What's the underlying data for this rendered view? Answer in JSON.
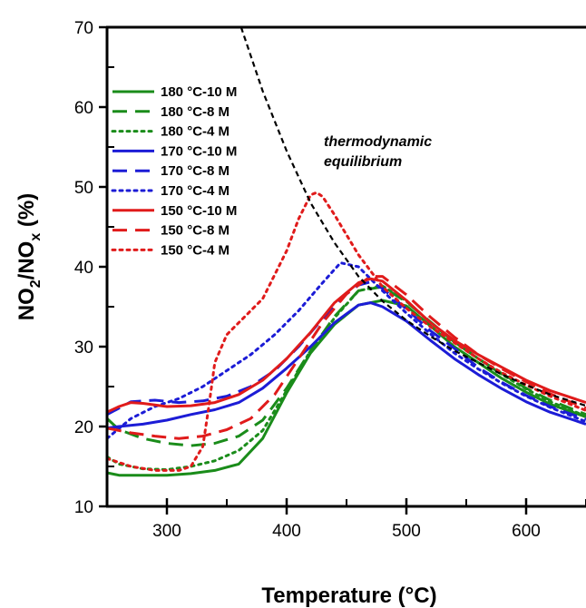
{
  "chart_data": {
    "type": "line",
    "xlabel": "Temperature (°C)",
    "ylabel": "NO2/NOx (%)",
    "xlim": [
      250,
      650
    ],
    "ylim": [
      10,
      70
    ],
    "xticks": [
      300,
      400,
      500,
      600
    ],
    "yticks": [
      10,
      20,
      30,
      40,
      50,
      60,
      70
    ],
    "grid": false,
    "legend_position": "top-left",
    "annotation": [
      "thermodynamic",
      "equilibrium"
    ],
    "colors": {
      "green": "#1a8c1a",
      "blue": "#1c1cd6",
      "red": "#e01b1b",
      "black": "#000000"
    },
    "series": [
      {
        "name": "180 °C-10 M",
        "color": "green",
        "dash": "solid",
        "x": [
          250,
          260,
          280,
          300,
          320,
          340,
          360,
          380,
          400,
          420,
          440,
          460,
          480,
          500,
          520,
          540,
          560,
          580,
          600,
          620,
          650
        ],
        "y": [
          14.2,
          13.9,
          13.9,
          13.9,
          14.1,
          14.5,
          15.3,
          18.5,
          24.2,
          29.2,
          32.8,
          35.2,
          35.8,
          35.1,
          32.6,
          30.0,
          28.0,
          26.0,
          24.3,
          22.8,
          21.2
        ]
      },
      {
        "name": "180 °C-8 M",
        "color": "green",
        "dash": "dash",
        "x": [
          250,
          260,
          280,
          300,
          320,
          340,
          360,
          380,
          400,
          420,
          440,
          460,
          480,
          500,
          520,
          540,
          560,
          580,
          600,
          620,
          650
        ],
        "y": [
          21.0,
          19.6,
          18.5,
          17.9,
          17.6,
          17.9,
          18.8,
          20.8,
          24.8,
          29.5,
          33.8,
          37.0,
          37.5,
          35.6,
          33.1,
          30.6,
          28.5,
          26.6,
          24.8,
          23.3,
          21.5
        ]
      },
      {
        "name": "180 °C-4 M",
        "color": "green",
        "dash": "dot",
        "x": [
          250,
          260,
          280,
          300,
          320,
          340,
          360,
          380,
          400,
          420,
          440,
          460,
          480,
          500,
          520,
          540,
          560,
          580,
          600,
          620,
          650
        ],
        "y": [
          16.2,
          15.3,
          14.7,
          14.6,
          15.0,
          15.7,
          17.0,
          19.5,
          24.5,
          29.5,
          33.6,
          37.0,
          37.6,
          35.7,
          33.0,
          30.6,
          28.5,
          26.5,
          24.7,
          23.1,
          21.3
        ]
      },
      {
        "name": "170 °C-10 M",
        "color": "blue",
        "dash": "solid",
        "x": [
          250,
          260,
          280,
          300,
          320,
          340,
          360,
          380,
          400,
          420,
          440,
          460,
          470,
          480,
          500,
          520,
          540,
          560,
          580,
          600,
          620,
          650
        ],
        "y": [
          19.8,
          20.0,
          20.3,
          20.8,
          21.5,
          22.1,
          23.0,
          24.8,
          27.3,
          30.0,
          33.0,
          35.2,
          35.5,
          35.0,
          33.2,
          30.8,
          28.5,
          26.5,
          24.7,
          23.1,
          21.8,
          20.3
        ]
      },
      {
        "name": "170 °C-8 M",
        "color": "blue",
        "dash": "dash",
        "x": [
          250,
          270,
          290,
          310,
          330,
          350,
          370,
          390,
          410,
          430,
          450,
          460,
          470,
          480,
          500,
          520,
          540,
          560,
          580,
          600,
          620,
          650
        ],
        "y": [
          21.5,
          23.1,
          23.3,
          23.0,
          23.2,
          23.8,
          25.0,
          27.0,
          30.0,
          33.5,
          36.6,
          37.7,
          38.1,
          37.3,
          34.7,
          32.0,
          29.8,
          27.4,
          25.5,
          23.9,
          22.5,
          20.9
        ]
      },
      {
        "name": "170 °C-4 M",
        "color": "blue",
        "dash": "dot",
        "x": [
          250,
          270,
          290,
          310,
          330,
          350,
          370,
          390,
          410,
          430,
          445,
          460,
          480,
          500,
          520,
          540,
          560,
          580,
          600,
          620,
          650
        ],
        "y": [
          18.5,
          21.0,
          22.5,
          23.5,
          25.0,
          27.0,
          29.0,
          31.5,
          34.5,
          38.0,
          40.5,
          40.0,
          37.0,
          34.2,
          31.6,
          29.2,
          27.2,
          25.4,
          23.8,
          22.4,
          20.6
        ]
      },
      {
        "name": "150 °C-10 M",
        "color": "red",
        "dash": "solid",
        "x": [
          250,
          260,
          270,
          280,
          300,
          320,
          340,
          360,
          380,
          400,
          420,
          440,
          460,
          470,
          480,
          500,
          520,
          540,
          560,
          580,
          600,
          620,
          650
        ],
        "y": [
          21.8,
          22.5,
          23.0,
          22.9,
          22.5,
          22.6,
          23.0,
          24.0,
          25.8,
          28.5,
          31.8,
          35.5,
          38.0,
          38.5,
          38.2,
          35.8,
          33.0,
          30.8,
          29.0,
          27.4,
          25.8,
          24.5,
          23.0
        ]
      },
      {
        "name": "150 °C-8 M",
        "color": "red",
        "dash": "dash",
        "x": [
          250,
          270,
          290,
          310,
          330,
          350,
          370,
          390,
          410,
          430,
          450,
          470,
          480,
          500,
          520,
          540,
          560,
          580,
          600,
          620,
          650
        ],
        "y": [
          19.8,
          19.2,
          18.8,
          18.5,
          18.8,
          19.6,
          21.0,
          24.0,
          28.5,
          33.0,
          36.6,
          38.8,
          38.8,
          36.5,
          33.7,
          31.2,
          29.0,
          27.2,
          25.6,
          24.1,
          22.3
        ]
      },
      {
        "name": "150 °C-4 M",
        "color": "red",
        "dash": "dot",
        "x": [
          250,
          270,
          290,
          310,
          320,
          330,
          335,
          340,
          350,
          360,
          380,
          400,
          410,
          420,
          425,
          430,
          440,
          460,
          480,
          500,
          520,
          540,
          560,
          580,
          600,
          620,
          650
        ],
        "y": [
          16.0,
          15.0,
          14.5,
          14.5,
          15.0,
          17.5,
          22.5,
          28.0,
          31.5,
          33.0,
          36.0,
          42.0,
          46.0,
          49.0,
          49.3,
          48.8,
          46.5,
          41.5,
          37.5,
          34.8,
          32.5,
          30.5,
          28.5,
          26.7,
          25.2,
          23.8,
          22.0
        ]
      },
      {
        "name": "",
        "color": "black",
        "dash": "shortdash",
        "x": [
          362,
          380,
          400,
          420,
          440,
          460,
          480,
          500,
          520,
          540,
          560,
          580,
          600,
          620,
          650
        ],
        "y": [
          70.0,
          62.0,
          54.5,
          48.0,
          43.0,
          38.8,
          35.7,
          33.3,
          31.3,
          29.5,
          28.0,
          26.5,
          25.2,
          24.0,
          22.6
        ]
      }
    ]
  }
}
